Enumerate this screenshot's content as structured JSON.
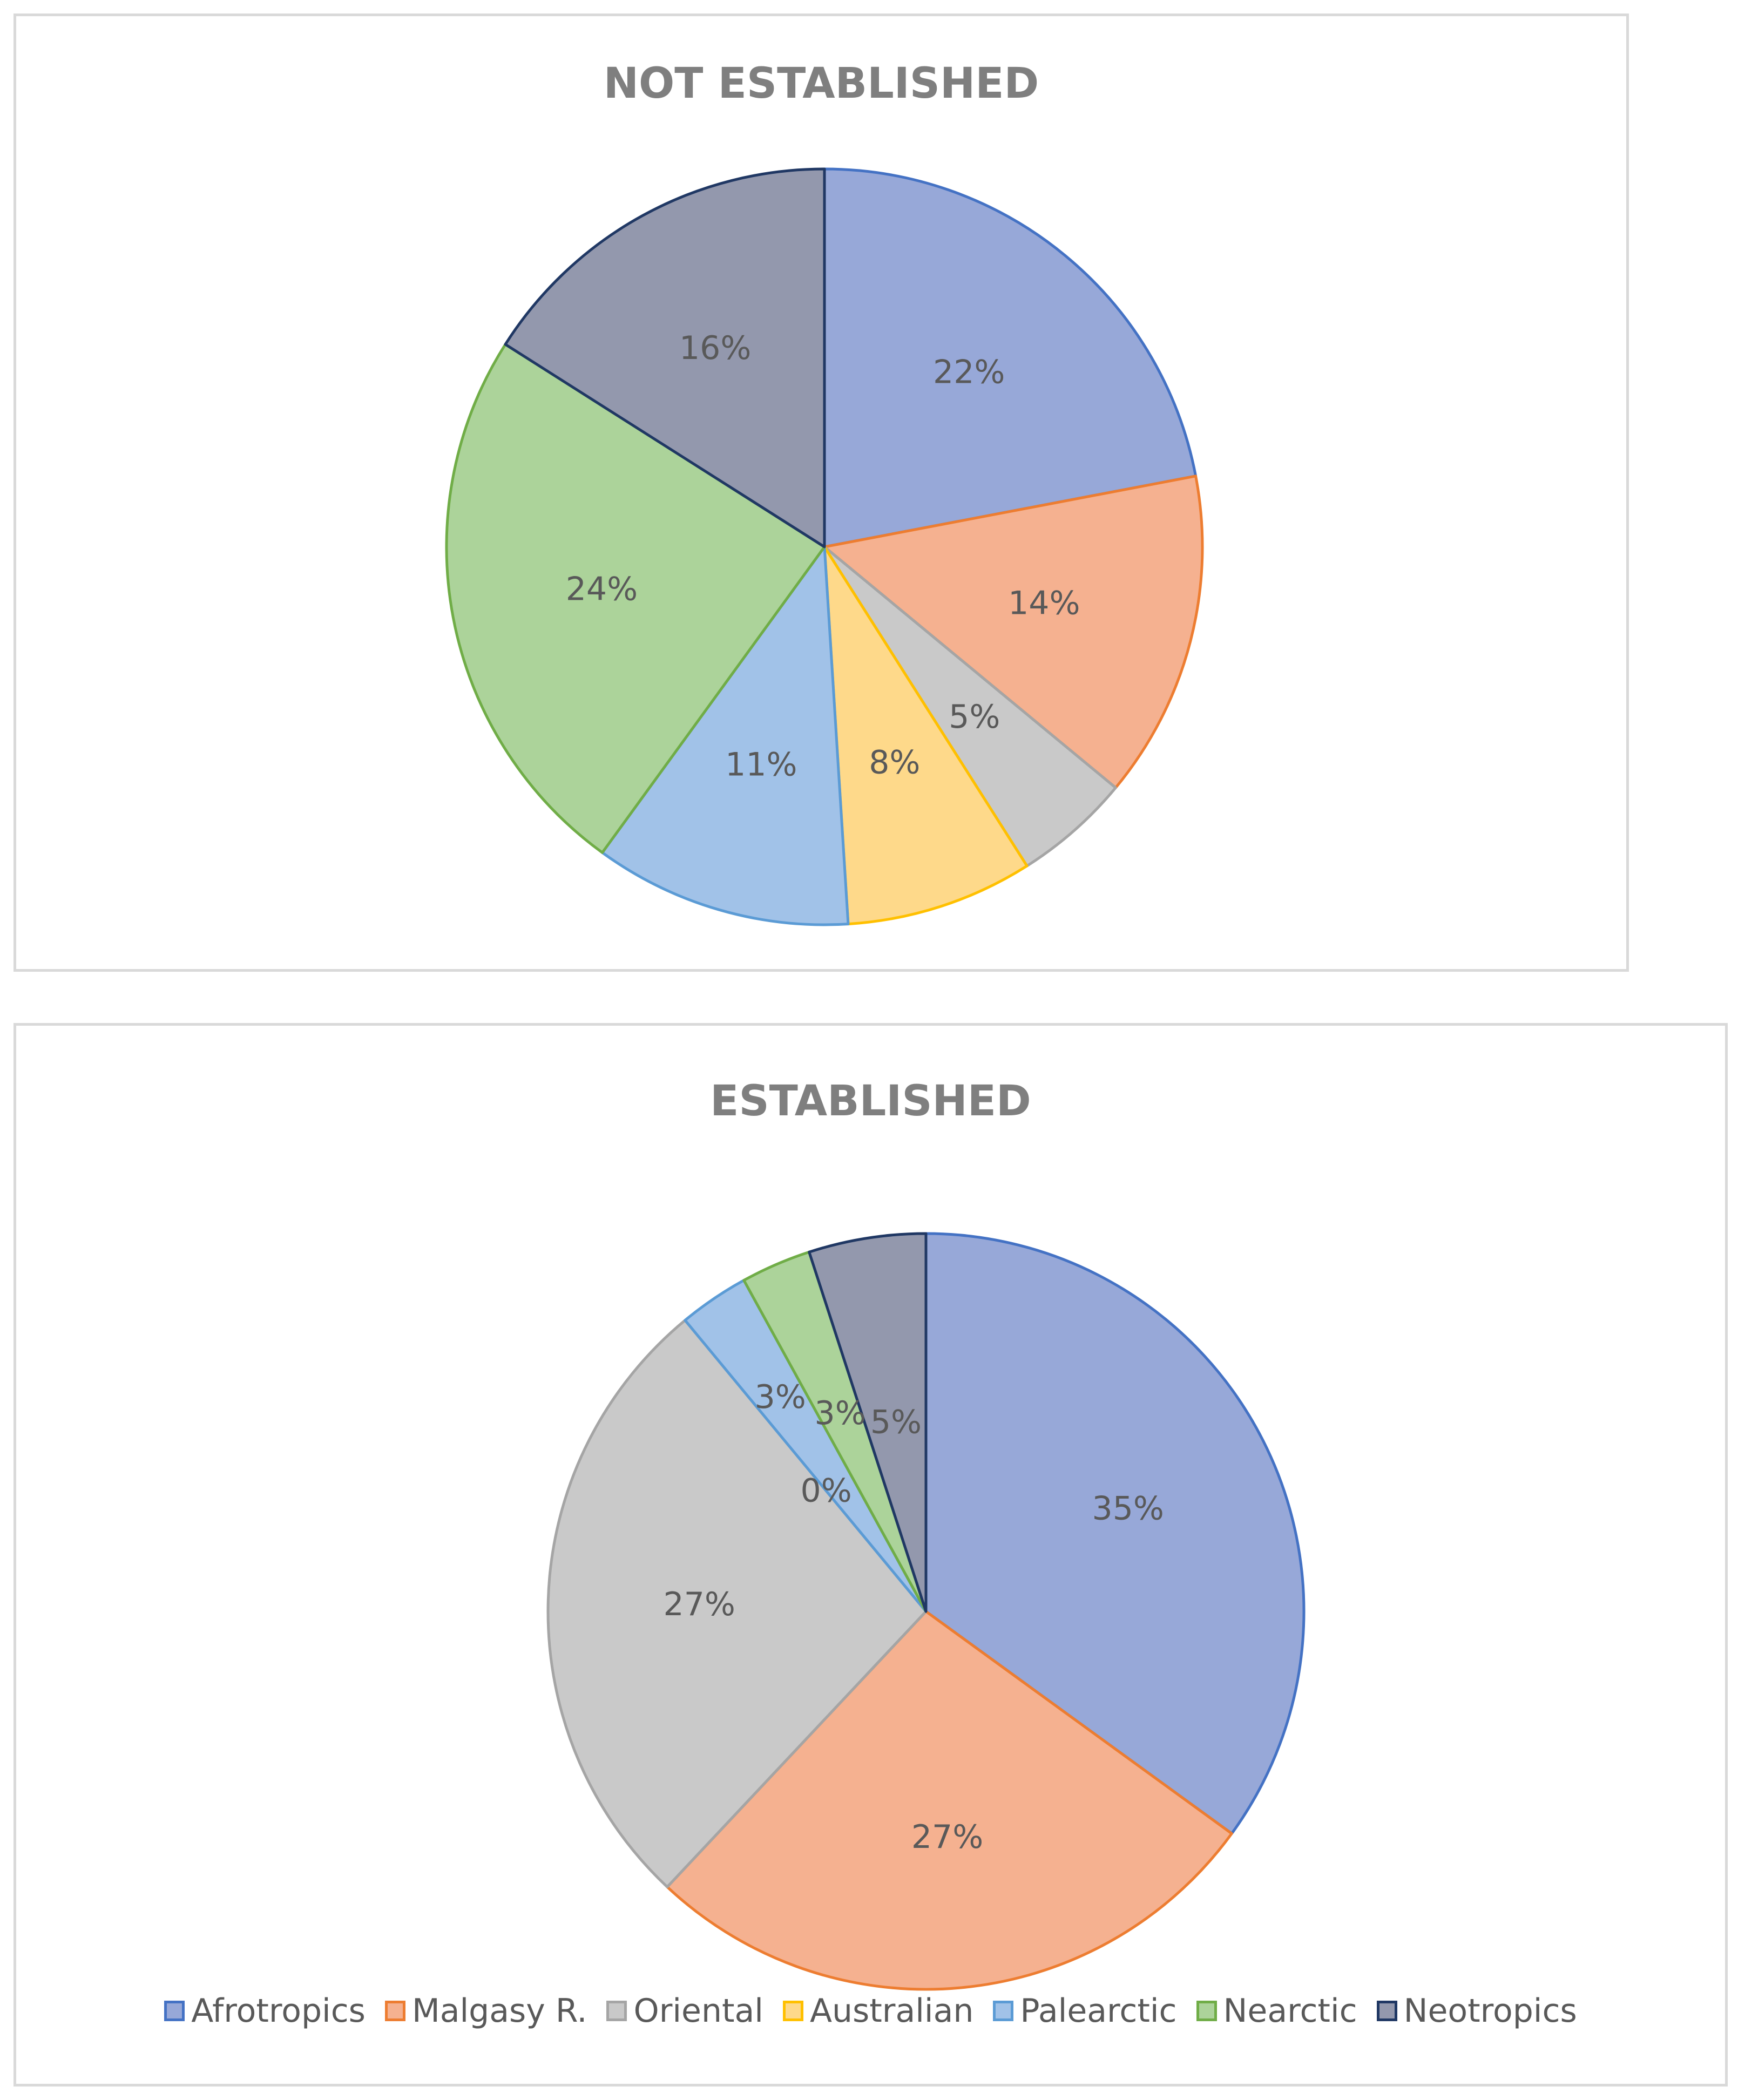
{
  "colors": {
    "Afrotropics": {
      "fill": "#97a8d8",
      "stroke": "#4472c4"
    },
    "Malgasy R.": {
      "fill": "#f5b190",
      "stroke": "#ed7d31"
    },
    "Oriental": {
      "fill": "#c9c9c9",
      "stroke": "#a5a5a5"
    },
    "Australian": {
      "fill": "#fed98a",
      "stroke": "#ffc000"
    },
    "Palearctic": {
      "fill": "#a1c2e8",
      "stroke": "#5b9bd5"
    },
    "Nearctic": {
      "fill": "#acd39a",
      "stroke": "#70ad47"
    },
    "Neotropics": {
      "fill": "#9398ad",
      "stroke": "#203864"
    }
  },
  "legend": [
    "Afrotropics",
    "Malgasy R.",
    "Oriental",
    "Australian",
    "Palearctic",
    "Nearctic",
    "Neotropics"
  ],
  "chart_data": [
    {
      "type": "pie",
      "title": "NOT ESTABLISHED",
      "categories": [
        "Afrotropics",
        "Malgasy R.",
        "Oriental",
        "Australian",
        "Palearctic",
        "Nearctic",
        "Neotropics"
      ],
      "values": [
        22,
        14,
        5,
        8,
        11,
        24,
        16
      ],
      "labels": [
        "22%",
        "14%",
        "5%",
        "8%",
        "11%",
        "24%",
        "16%"
      ]
    },
    {
      "type": "pie",
      "title": "ESTABLISHED",
      "categories": [
        "Afrotropics",
        "Malgasy R.",
        "Oriental",
        "Australian",
        "Palearctic",
        "Nearctic",
        "Neotropics"
      ],
      "values": [
        35,
        27,
        27,
        0,
        3,
        3,
        5
      ],
      "labels": [
        "35%",
        "27%",
        "27%",
        "0%",
        "3%",
        "3%",
        "5%"
      ],
      "legend_position": "bottom"
    }
  ]
}
